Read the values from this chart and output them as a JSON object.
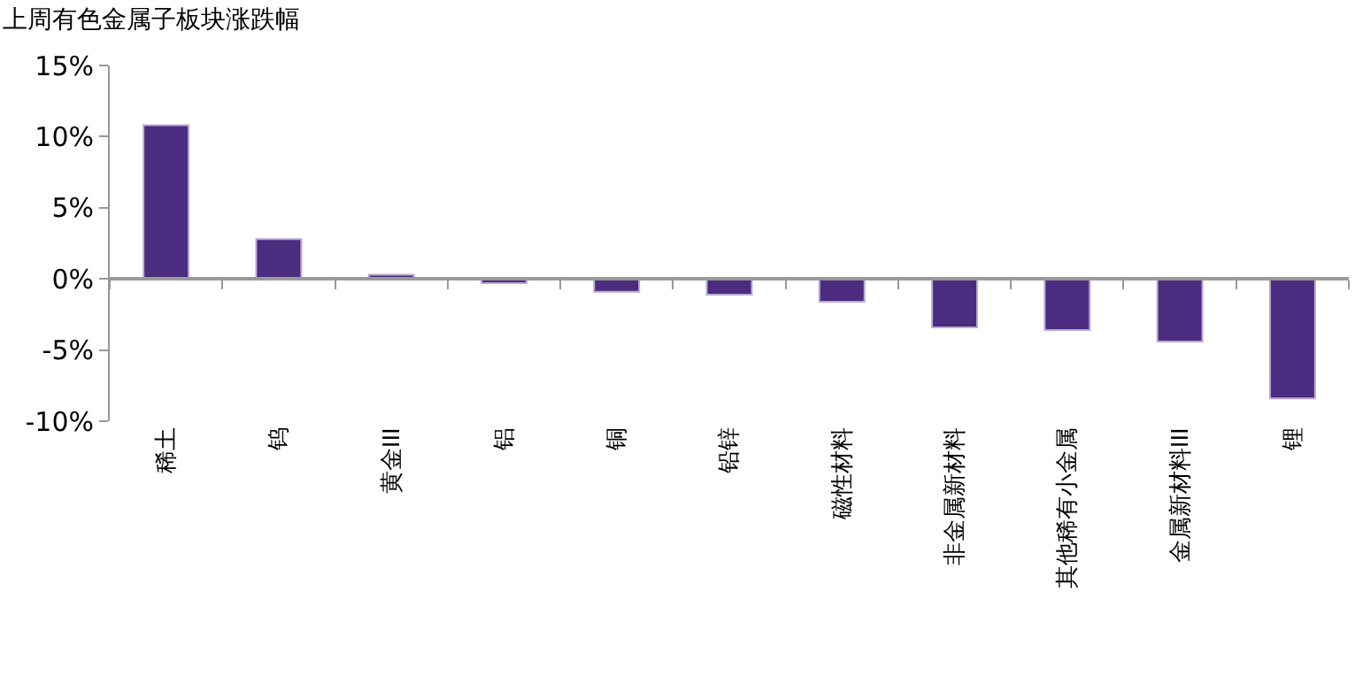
{
  "chart_data": {
    "type": "bar",
    "title": "上周有色金属子板块涨跌幅",
    "categories": [
      "稀土",
      "钨",
      "黄金III",
      "铝",
      "铜",
      "铅锌",
      "磁性材料",
      "非金属新材料",
      "其他稀有小金属",
      "金属新材料III",
      "锂"
    ],
    "values": [
      10.8,
      2.8,
      0.3,
      -0.3,
      -0.9,
      -1.1,
      -1.6,
      -3.4,
      -3.6,
      -4.4,
      -8.4
    ],
    "color": "#4b2c7f",
    "ylim": [
      -10,
      15
    ],
    "yticks": [
      {
        "value": -10,
        "label": "-10%"
      },
      {
        "value": -5,
        "label": "-5%"
      },
      {
        "value": 0,
        "label": "0%"
      },
      {
        "value": 5,
        "label": "5%"
      },
      {
        "value": 10,
        "label": "10%"
      },
      {
        "value": 15,
        "label": "15%"
      }
    ],
    "legend": false
  }
}
